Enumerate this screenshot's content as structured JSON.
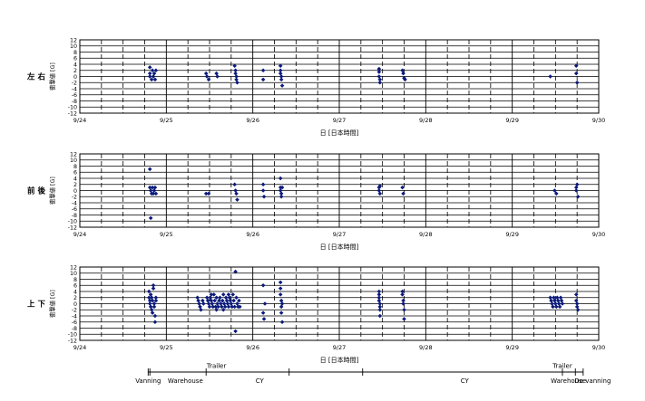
{
  "chart_data": [
    {
      "type": "scatter",
      "row_label": "左 右",
      "ylabel": "衝撃値 [G]",
      "xlabel": "日 [日本時間]",
      "ylim": [
        -12,
        12
      ],
      "yticks": [
        "12",
        "10",
        "8",
        "6",
        "4",
        "2",
        "0",
        "-2",
        "-4",
        "-6",
        "-8",
        "-10",
        "-12"
      ],
      "xlim": [
        0,
        6
      ],
      "xticks": [
        "9/24",
        "9/25",
        "9/26",
        "9/27",
        "9/28",
        "9/29",
        "9/30"
      ],
      "marker_color": "#0b1a7a",
      "points": [
        [
          0.81,
          3
        ],
        [
          0.81,
          1
        ],
        [
          0.81,
          0
        ],
        [
          0.83,
          -1
        ],
        [
          0.84,
          2
        ],
        [
          0.85,
          0
        ],
        [
          0.86,
          1
        ],
        [
          0.87,
          -1
        ],
        [
          0.88,
          2
        ],
        [
          1.46,
          1
        ],
        [
          1.47,
          0
        ],
        [
          1.49,
          -1
        ],
        [
          1.58,
          1
        ],
        [
          1.59,
          0
        ],
        [
          1.79,
          3.5
        ],
        [
          1.8,
          2
        ],
        [
          1.8,
          1
        ],
        [
          1.81,
          0
        ],
        [
          1.81,
          -1
        ],
        [
          1.82,
          -2
        ],
        [
          2.12,
          2
        ],
        [
          2.12,
          -1
        ],
        [
          2.32,
          3.5
        ],
        [
          2.32,
          2
        ],
        [
          2.32,
          1
        ],
        [
          2.33,
          0
        ],
        [
          2.33,
          -1
        ],
        [
          2.34,
          -3
        ],
        [
          3.46,
          2.5
        ],
        [
          3.46,
          1.5
        ],
        [
          3.46,
          0
        ],
        [
          3.47,
          -1
        ],
        [
          3.47,
          -2
        ],
        [
          3.73,
          2
        ],
        [
          3.74,
          1
        ],
        [
          3.75,
          -0.5
        ],
        [
          3.76,
          -1
        ],
        [
          5.44,
          0
        ],
        [
          5.74,
          3.5
        ],
        [
          5.74,
          1
        ],
        [
          5.75,
          -2
        ]
      ]
    },
    {
      "type": "scatter",
      "row_label": "前 後",
      "ylabel": "衝撃値 [G]",
      "xlabel": "日 [日本時間]",
      "ylim": [
        -12,
        12
      ],
      "yticks": [
        "12",
        "10",
        "8",
        "6",
        "4",
        "2",
        "0",
        "-2",
        "-4",
        "-6",
        "-8",
        "-10",
        "-12"
      ],
      "xlim": [
        0,
        6
      ],
      "xticks": [
        "9/24",
        "9/25",
        "9/26",
        "9/27",
        "9/28",
        "9/29",
        "9/30"
      ],
      "marker_color": "#0b1a7a",
      "points": [
        [
          0.81,
          7
        ],
        [
          0.81,
          1
        ],
        [
          0.82,
          0
        ],
        [
          0.83,
          -1
        ],
        [
          0.84,
          1
        ],
        [
          0.85,
          -1
        ],
        [
          0.86,
          0
        ],
        [
          0.87,
          1
        ],
        [
          0.88,
          -1
        ],
        [
          0.82,
          -9
        ],
        [
          1.46,
          -1
        ],
        [
          1.49,
          -1
        ],
        [
          1.79,
          2
        ],
        [
          1.8,
          0
        ],
        [
          1.81,
          -1
        ],
        [
          1.82,
          -3
        ],
        [
          2.12,
          2
        ],
        [
          2.12,
          0
        ],
        [
          2.13,
          -2
        ],
        [
          2.32,
          4
        ],
        [
          2.32,
          1
        ],
        [
          2.32,
          0
        ],
        [
          2.33,
          -1
        ],
        [
          2.33,
          -2
        ],
        [
          2.34,
          1
        ],
        [
          3.46,
          1
        ],
        [
          3.46,
          0
        ],
        [
          3.47,
          -1
        ],
        [
          3.47,
          1.5
        ],
        [
          3.73,
          1
        ],
        [
          3.74,
          -1
        ],
        [
          5.49,
          0
        ],
        [
          5.51,
          -1
        ],
        [
          5.74,
          1
        ],
        [
          5.74,
          0
        ],
        [
          5.75,
          2
        ],
        [
          5.76,
          -2
        ]
      ]
    },
    {
      "type": "scatter",
      "row_label": "上 下",
      "ylabel": "衝撃値 [G]",
      "xlabel": "日 [日本時間]",
      "ylim": [
        -12,
        12
      ],
      "yticks": [
        "12",
        "10",
        "8",
        "6",
        "4",
        "2",
        "0",
        "-2",
        "-4",
        "-6",
        "-8",
        "-10",
        "-12"
      ],
      "xlim": [
        0,
        6
      ],
      "xticks": [
        "9/24",
        "9/25",
        "9/26",
        "9/27",
        "9/28",
        "9/29",
        "9/30"
      ],
      "marker_color": "#0b1a7a",
      "points": [
        [
          0.8,
          4
        ],
        [
          0.8,
          2
        ],
        [
          0.81,
          1
        ],
        [
          0.81,
          0
        ],
        [
          0.82,
          -1
        ],
        [
          0.82,
          3
        ],
        [
          0.83,
          2
        ],
        [
          0.83,
          -2
        ],
        [
          0.84,
          1
        ],
        [
          0.84,
          -3
        ],
        [
          0.85,
          6
        ],
        [
          0.85,
          5
        ],
        [
          0.86,
          -1
        ],
        [
          0.86,
          0
        ],
        [
          0.87,
          -6
        ],
        [
          0.87,
          -4
        ],
        [
          0.88,
          2
        ],
        [
          0.88,
          1
        ],
        [
          1.36,
          2
        ],
        [
          1.37,
          1
        ],
        [
          1.38,
          0
        ],
        [
          1.39,
          -1
        ],
        [
          1.4,
          -2
        ],
        [
          1.42,
          1
        ],
        [
          1.43,
          0
        ],
        [
          1.47,
          2
        ],
        [
          1.48,
          1
        ],
        [
          1.49,
          0
        ],
        [
          1.5,
          -1
        ],
        [
          1.51,
          2
        ],
        [
          1.52,
          1
        ],
        [
          1.53,
          0
        ],
        [
          1.54,
          -1
        ],
        [
          1.55,
          3
        ],
        [
          1.56,
          1
        ],
        [
          1.57,
          -1
        ],
        [
          1.58,
          2
        ],
        [
          1.59,
          0
        ],
        [
          1.6,
          -1
        ],
        [
          1.61,
          1
        ],
        [
          1.62,
          2
        ],
        [
          1.63,
          0
        ],
        [
          1.64,
          -1
        ],
        [
          1.65,
          1
        ],
        [
          1.66,
          3
        ],
        [
          1.67,
          0
        ],
        [
          1.68,
          -1
        ],
        [
          1.69,
          2
        ],
        [
          1.7,
          1
        ],
        [
          1.71,
          0
        ],
        [
          1.72,
          -1
        ],
        [
          1.73,
          2
        ],
        [
          1.74,
          1
        ],
        [
          1.75,
          0
        ],
        [
          1.76,
          -1
        ],
        [
          1.77,
          3
        ],
        [
          1.78,
          1
        ],
        [
          1.79,
          -1
        ],
        [
          1.8,
          10.5
        ],
        [
          1.81,
          2
        ],
        [
          1.82,
          0
        ],
        [
          1.83,
          -1
        ],
        [
          1.84,
          1
        ],
        [
          1.85,
          -1
        ],
        [
          1.8,
          -9
        ],
        [
          1.52,
          3
        ],
        [
          1.58,
          -2
        ],
        [
          1.66,
          -2
        ],
        [
          1.72,
          3
        ],
        [
          2.12,
          6
        ],
        [
          2.12,
          -3
        ],
        [
          2.13,
          -5
        ],
        [
          2.14,
          0
        ],
        [
          2.32,
          7
        ],
        [
          2.32,
          5
        ],
        [
          2.32,
          3
        ],
        [
          2.33,
          1
        ],
        [
          2.33,
          -1
        ],
        [
          2.33,
          -3
        ],
        [
          2.34,
          -6
        ],
        [
          2.34,
          0
        ],
        [
          3.46,
          4
        ],
        [
          3.46,
          3
        ],
        [
          3.46,
          2
        ],
        [
          3.46,
          1
        ],
        [
          3.47,
          0
        ],
        [
          3.47,
          -1
        ],
        [
          3.47,
          -2
        ],
        [
          3.47,
          -4
        ],
        [
          3.73,
          4
        ],
        [
          3.73,
          3
        ],
        [
          3.74,
          1
        ],
        [
          3.74,
          0
        ],
        [
          3.75,
          -2
        ],
        [
          3.75,
          -5
        ],
        [
          5.44,
          2
        ],
        [
          5.45,
          1
        ],
        [
          5.46,
          0
        ],
        [
          5.47,
          -1
        ],
        [
          5.48,
          2
        ],
        [
          5.49,
          1
        ],
        [
          5.5,
          0
        ],
        [
          5.51,
          -1
        ],
        [
          5.52,
          2
        ],
        [
          5.53,
          1
        ],
        [
          5.54,
          0
        ],
        [
          5.55,
          -1
        ],
        [
          5.56,
          2
        ],
        [
          5.57,
          1
        ],
        [
          5.58,
          0
        ],
        [
          5.74,
          3
        ],
        [
          5.74,
          1
        ],
        [
          5.75,
          0
        ],
        [
          5.75,
          -1
        ],
        [
          5.76,
          -2
        ]
      ]
    }
  ],
  "phases": {
    "markers": [
      0.79,
      0.81,
      1.46,
      2.42,
      3.27,
      5.58,
      5.73,
      5.82
    ],
    "labels_below": [
      {
        "text": "Vanning",
        "x": 0.79
      },
      {
        "text": "Warehouse",
        "x": 1.22
      },
      {
        "text": "CY",
        "x": 2.08
      },
      {
        "text": "CY",
        "x": 4.45
      },
      {
        "text": "Warehouse",
        "x": 5.65
      },
      {
        "text": "De-vanning",
        "x": 5.93
      }
    ],
    "labels_above": [
      {
        "text": "Trailer",
        "x": 1.58
      },
      {
        "text": "Trailer",
        "x": 5.58
      }
    ]
  }
}
